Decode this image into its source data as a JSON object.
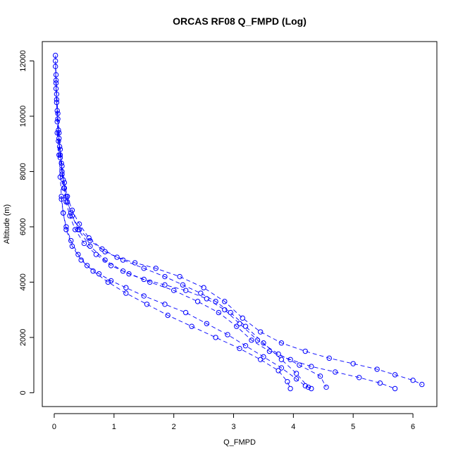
{
  "chart_data": {
    "type": "line",
    "title": "ORCAS RF08 Q_FMPD (Log)",
    "xlabel": "Q_FMPD",
    "ylabel": "Altitude (m)",
    "xlim": [
      -0.2,
      6.4
    ],
    "ylim": [
      -500,
      12700
    ],
    "xticks": [
      "0",
      "1",
      "2",
      "3",
      "4",
      "5",
      "6"
    ],
    "yticks": [
      "0",
      "2000",
      "4000",
      "6000",
      "8000",
      "10000",
      "12000"
    ],
    "grid": false,
    "legend": "none",
    "marker": "open-circle",
    "line_style": "dashed",
    "color": "#0000ff",
    "series": [
      {
        "x": [
          0.02,
          0.03,
          0.04,
          0.06,
          0.08,
          0.1,
          0.13,
          0.17,
          0.22,
          0.3,
          0.42,
          0.58,
          0.8,
          1.05,
          1.35,
          1.7,
          2.1,
          2.5,
          2.85,
          3.15,
          3.45,
          3.8,
          4.2,
          4.6,
          5.0,
          5.4,
          5.7,
          6.0,
          6.15
        ],
        "y": [
          12200,
          11500,
          10800,
          10100,
          9400,
          8800,
          8200,
          7600,
          7100,
          6600,
          6100,
          5600,
          5200,
          4900,
          4700,
          4500,
          4200,
          3800,
          3300,
          2700,
          2200,
          1800,
          1500,
          1250,
          1050,
          850,
          650,
          450,
          300
        ]
      },
      {
        "x": [
          0.02,
          0.03,
          0.04,
          0.06,
          0.08,
          0.1,
          0.13,
          0.16,
          0.2,
          0.26,
          0.35,
          0.5,
          0.7,
          0.95,
          1.25,
          1.6,
          2.0,
          2.4,
          2.75,
          3.05,
          3.3,
          3.6,
          3.95,
          4.3,
          4.7,
          5.1,
          5.45,
          5.7
        ],
        "y": [
          12000,
          11300,
          10600,
          9900,
          9200,
          8600,
          8000,
          7400,
          6900,
          6400,
          5900,
          5400,
          5000,
          4600,
          4300,
          4000,
          3700,
          3300,
          2900,
          2400,
          1900,
          1500,
          1200,
          950,
          750,
          550,
          350,
          150
        ]
      },
      {
        "x": [
          0.02,
          0.03,
          0.05,
          0.07,
          0.09,
          0.12,
          0.15,
          0.2,
          0.28,
          0.4,
          0.6,
          0.85,
          1.15,
          1.5,
          1.85,
          2.2,
          2.55,
          2.85,
          3.1,
          3.4,
          3.75,
          4.1,
          4.45,
          4.55
        ],
        "y": [
          11800,
          11000,
          10200,
          9500,
          8900,
          8300,
          7700,
          7100,
          6500,
          5900,
          5300,
          4800,
          4400,
          4100,
          3900,
          3700,
          3400,
          3000,
          2500,
          1900,
          1400,
          1000,
          600,
          200
        ]
      },
      {
        "x": [
          0.03,
          0.04,
          0.05,
          0.07,
          0.1,
          0.13,
          0.17,
          0.22,
          0.3,
          0.42,
          0.6,
          0.85,
          1.15,
          1.5,
          1.85,
          2.15,
          2.45,
          2.7,
          2.95,
          3.2,
          3.5,
          3.8,
          4.05,
          4.25
        ],
        "y": [
          11200,
          10500,
          9800,
          9100,
          8500,
          7900,
          7400,
          6900,
          6400,
          5900,
          5500,
          5100,
          4800,
          4500,
          4200,
          3900,
          3600,
          3300,
          2900,
          2400,
          1800,
          1200,
          700,
          200
        ]
      },
      {
        "x": [
          0.05,
          0.08,
          0.1,
          0.12,
          0.15,
          0.2,
          0.3,
          0.45,
          0.65,
          0.9,
          1.2,
          1.55,
          1.9,
          2.3,
          2.7,
          3.1,
          3.45,
          3.75,
          3.9,
          3.95
        ],
        "y": [
          9400,
          8600,
          7800,
          7100,
          6500,
          5900,
          5300,
          4800,
          4400,
          4000,
          3600,
          3200,
          2800,
          2400,
          2000,
          1600,
          1200,
          800,
          400,
          150
        ]
      },
      {
        "x": [
          0.12,
          0.15,
          0.2,
          0.28,
          0.4,
          0.55,
          0.75,
          0.95,
          1.2,
          1.5,
          1.85,
          2.2,
          2.55,
          2.9,
          3.2,
          3.5,
          3.8,
          4.05,
          4.2,
          4.3
        ],
        "y": [
          7000,
          6500,
          6000,
          5500,
          5000,
          4600,
          4300,
          4050,
          3800,
          3500,
          3200,
          2900,
          2500,
          2100,
          1700,
          1300,
          900,
          500,
          250,
          150
        ]
      }
    ]
  }
}
